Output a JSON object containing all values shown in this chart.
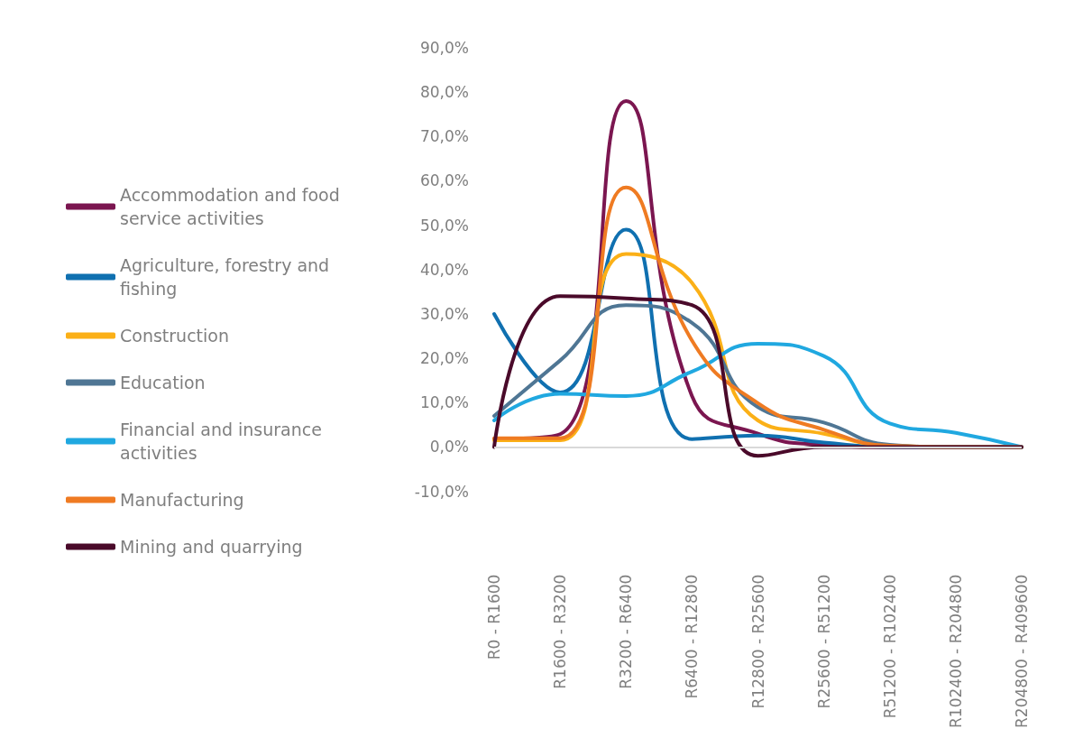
{
  "chart_data": {
    "type": "line",
    "categories": [
      "R0 - R1600",
      "R1600 - R3200",
      "R3200 - R6400",
      "R6400 - R12800",
      "R12800 - R25600",
      "R25600 - R51200",
      "R51200 - R102400",
      "R102400 - R204800",
      "R204800 - R409600"
    ],
    "series": [
      {
        "name": "Accommodation and food service activities",
        "color": "#7b1650",
        "values": [
          1.8,
          2.9,
          78,
          11.5,
          3,
          0.5,
          0,
          0,
          0
        ]
      },
      {
        "name": "Agriculture, forestry and fishing",
        "color": "#1070b0",
        "values": [
          30,
          12.3,
          49,
          1.8,
          2.6,
          1,
          0,
          0,
          0
        ]
      },
      {
        "name": "Construction",
        "color": "#fbb017",
        "values": [
          1.5,
          1.5,
          43.5,
          37,
          6,
          3,
          0.3,
          0,
          0
        ]
      },
      {
        "name": "Education",
        "color": "#4f7694",
        "values": [
          7,
          19.5,
          32,
          28,
          9,
          5.5,
          0.5,
          0,
          0
        ]
      },
      {
        "name": "Financial and insurance activities",
        "color": "#20a8e0",
        "values": [
          6,
          12,
          11.5,
          17,
          23.3,
          20.5,
          5.3,
          3.2,
          0
        ]
      },
      {
        "name": "Manufacturing",
        "color": "#ef7b22",
        "values": [
          2,
          2,
          58.5,
          24,
          9.9,
          3.9,
          0.3,
          0,
          0
        ]
      },
      {
        "name": "Mining and quarrying",
        "color": "#4a0a2a",
        "values": [
          0,
          34,
          33.5,
          32,
          -2,
          0,
          0,
          0,
          0
        ]
      }
    ],
    "ylim": [
      -10,
      90
    ],
    "yticks": [
      {
        "value": -10,
        "label": "-10,0%"
      },
      {
        "value": 0,
        "label": "0,0%"
      },
      {
        "value": 10,
        "label": "10,0%"
      },
      {
        "value": 20,
        "label": "20,0%"
      },
      {
        "value": 30,
        "label": "30,0%"
      },
      {
        "value": 40,
        "label": "40,0%"
      },
      {
        "value": 50,
        "label": "50,0%"
      },
      {
        "value": 60,
        "label": "60,0%"
      },
      {
        "value": 70,
        "label": "70,0%"
      },
      {
        "value": 80,
        "label": "80,0%"
      },
      {
        "value": 90,
        "label": "90,0%"
      }
    ],
    "grid": false,
    "ref_lines": [
      {
        "axis": "y",
        "value": 0,
        "color": "#d9d9d9"
      }
    ],
    "legend": "left",
    "marker": "none",
    "line_style": "solid"
  }
}
